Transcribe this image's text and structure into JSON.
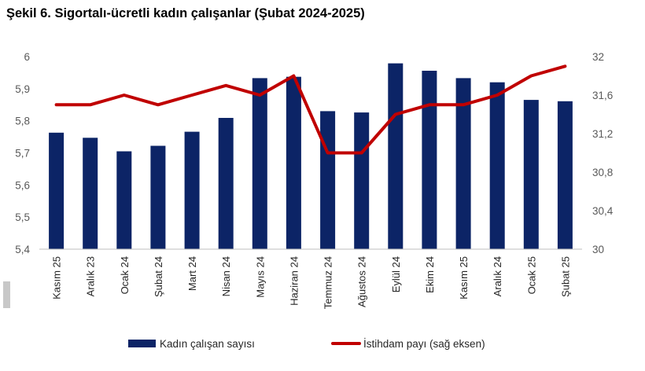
{
  "title": "Şekil 6. Sigortalı-ücretli kadın çalışanlar (Şubat 2024-2025)",
  "colors": {
    "bars": "#0c2466",
    "line": "#c00000",
    "axis": "#bfbfbf"
  },
  "chart_data": {
    "type": "bar+line",
    "title": "Şekil 6. Sigortalı-ücretli kadın çalışanlar (Şubat 2024-2025)",
    "categories": [
      "Kasım 25",
      "Aralık 23",
      "Ocak 24",
      "Şubat 24",
      "Mart 24",
      "Nisan 24",
      "Mayıs 24",
      "Haziran 24",
      "Temmuz 24",
      "Ağustos 24",
      "Eylül 24",
      "Ekim 24",
      "Kasım 25",
      "Aralık 24",
      "Ocak 25",
      "Şubat 25"
    ],
    "series": [
      {
        "name": "Kadın çalışan sayısı",
        "type": "bar",
        "axis": "left",
        "values": [
          5.763,
          5.747,
          5.705,
          5.722,
          5.766,
          5.809,
          5.933,
          5.937,
          5.83,
          5.826,
          5.979,
          5.956,
          5.933,
          5.92,
          5.865,
          5.861
        ]
      },
      {
        "name": "İstihdam payı (sağ eksen)",
        "type": "line",
        "axis": "right",
        "values": [
          31.5,
          31.5,
          31.6,
          31.5,
          31.6,
          31.7,
          31.6,
          31.8,
          31.0,
          31.0,
          31.4,
          31.5,
          31.5,
          31.6,
          31.8,
          31.9
        ]
      }
    ],
    "y_left": {
      "min": 5.4,
      "max": 6.0,
      "ticks": [
        "5,4",
        "5,5",
        "5,6",
        "5,7",
        "5,8",
        "5,9",
        "6"
      ]
    },
    "y_right": {
      "min": 30.0,
      "max": 32.0,
      "ticks": [
        "30",
        "30,4",
        "30,8",
        "31,2",
        "31,6",
        "32"
      ]
    },
    "grid": false,
    "legend": "bottom"
  }
}
